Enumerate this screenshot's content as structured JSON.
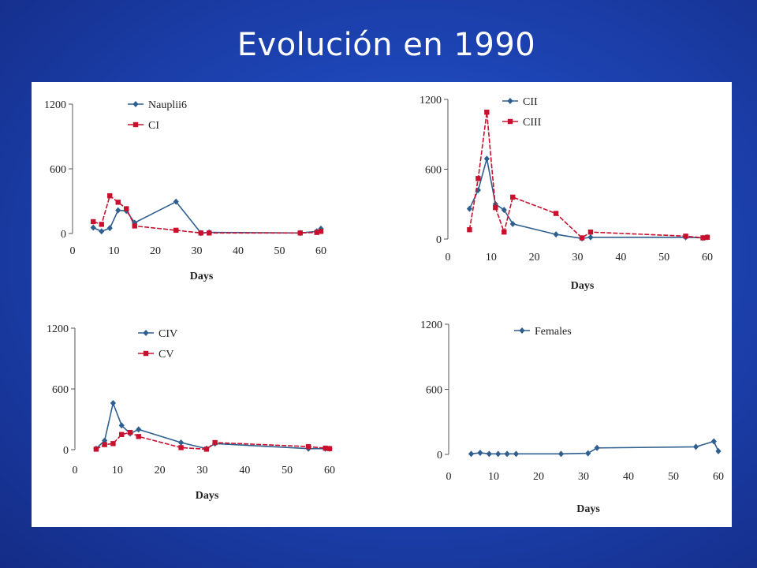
{
  "slide": {
    "title": "Evolución en 1990",
    "colors": {
      "background": "#1d44b4",
      "panel": "#ffffff",
      "series_blue": "#2f5f8f",
      "series_red": "#c8102e"
    }
  },
  "chart_data": [
    {
      "type": "line",
      "xlabel": "Days",
      "ylabel": "",
      "xlim": [
        0,
        60
      ],
      "ylim": [
        0,
        1200
      ],
      "xticks": [
        0,
        10,
        20,
        30,
        40,
        50,
        60
      ],
      "yticks": [
        0,
        600,
        1200
      ],
      "legend": "top-left",
      "grid": false,
      "series": [
        {
          "name": "Nauplii6",
          "color": "#2f5f8f",
          "marker": "diamond",
          "x": [
            5,
            7,
            9,
            11,
            13,
            15,
            25,
            31,
            33,
            55,
            59,
            60
          ],
          "y": [
            55,
            20,
            50,
            215,
            210,
            100,
            295,
            5,
            10,
            5,
            20,
            45
          ]
        },
        {
          "name": "CI",
          "color": "#c8102e",
          "marker": "square",
          "x": [
            5,
            7,
            9,
            11,
            13,
            15,
            25,
            31,
            33,
            55,
            59,
            60
          ],
          "y": [
            110,
            85,
            350,
            290,
            230,
            70,
            30,
            5,
            5,
            5,
            10,
            20
          ]
        }
      ]
    },
    {
      "type": "line",
      "xlabel": "Days",
      "ylabel": "",
      "xlim": [
        0,
        60
      ],
      "ylim": [
        0,
        1200
      ],
      "xticks": [
        0,
        10,
        20,
        30,
        40,
        50,
        60
      ],
      "yticks": [
        0,
        600,
        1200
      ],
      "legend": "top-left",
      "grid": false,
      "series": [
        {
          "name": "CII",
          "color": "#2f5f8f",
          "marker": "diamond",
          "x": [
            5,
            7,
            9,
            11,
            13,
            15,
            25,
            31,
            33,
            55,
            59,
            60
          ],
          "y": [
            260,
            420,
            690,
            300,
            250,
            130,
            40,
            5,
            15,
            15,
            10,
            15
          ]
        },
        {
          "name": "CIII",
          "color": "#c8102e",
          "marker": "square",
          "x": [
            5,
            7,
            9,
            11,
            13,
            15,
            25,
            31,
            33,
            55,
            59,
            60
          ],
          "y": [
            80,
            520,
            1090,
            270,
            60,
            360,
            220,
            10,
            60,
            25,
            10,
            15
          ]
        }
      ]
    },
    {
      "type": "line",
      "xlabel": "Days",
      "ylabel": "",
      "xlim": [
        0,
        60
      ],
      "ylim": [
        0,
        1200
      ],
      "xticks": [
        0,
        10,
        20,
        30,
        40,
        50,
        60
      ],
      "yticks": [
        0,
        600,
        1200
      ],
      "legend": "top-left",
      "grid": false,
      "series": [
        {
          "name": "CIV",
          "color": "#2f5f8f",
          "marker": "diamond",
          "x": [
            5,
            7,
            9,
            11,
            13,
            15,
            25,
            31,
            33,
            55,
            59,
            60
          ],
          "y": [
            10,
            90,
            460,
            240,
            160,
            200,
            70,
            10,
            60,
            10,
            10,
            10
          ]
        },
        {
          "name": "CV",
          "color": "#c8102e",
          "marker": "square",
          "x": [
            5,
            7,
            9,
            11,
            13,
            15,
            25,
            31,
            33,
            55,
            59,
            60
          ],
          "y": [
            5,
            50,
            60,
            150,
            170,
            130,
            20,
            5,
            70,
            30,
            15,
            10
          ]
        }
      ]
    },
    {
      "type": "line",
      "xlabel": "Days",
      "ylabel": "",
      "xlim": [
        0,
        60
      ],
      "ylim": [
        0,
        1200
      ],
      "xticks": [
        0,
        10,
        20,
        30,
        40,
        50,
        60
      ],
      "yticks": [
        0,
        600,
        1200
      ],
      "legend": "top-left",
      "grid": false,
      "series": [
        {
          "name": "Females",
          "color": "#2f5f8f",
          "marker": "diamond",
          "x": [
            5,
            7,
            9,
            11,
            13,
            15,
            25,
            31,
            33,
            55,
            59,
            60
          ],
          "y": [
            5,
            15,
            5,
            5,
            5,
            5,
            5,
            10,
            60,
            70,
            120,
            30
          ]
        }
      ]
    }
  ]
}
